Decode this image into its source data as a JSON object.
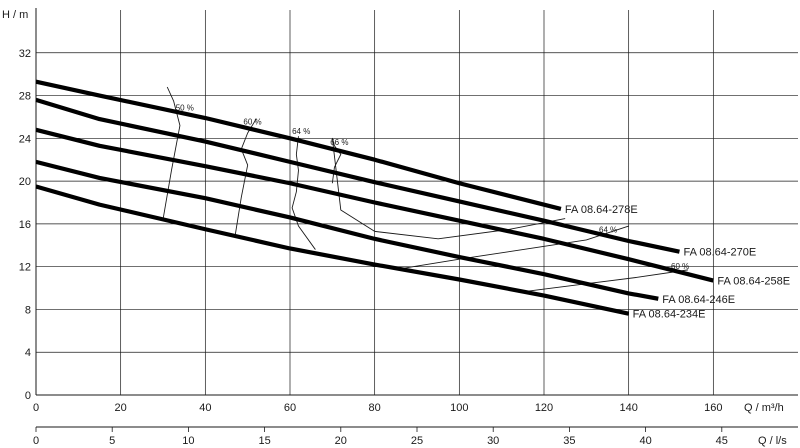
{
  "chart_data": {
    "type": "line",
    "title": "",
    "ylabel": "H / m",
    "xlabel": "Q / m³/h",
    "x2label": "Q / l/s",
    "xlim": [
      0,
      180
    ],
    "ylim": [
      0,
      36
    ],
    "x2lim": [
      0,
      50
    ],
    "x_ticks": [
      0,
      20,
      40,
      60,
      80,
      100,
      120,
      140,
      160
    ],
    "y_ticks": [
      0,
      4,
      8,
      12,
      16,
      20,
      24,
      28,
      32
    ],
    "x2_ticks": [
      0,
      5,
      10,
      15,
      20,
      25,
      30,
      35,
      40,
      45
    ],
    "grid": true,
    "series": [
      {
        "name": "FA 08.64-278E",
        "x": [
          0,
          15,
          40,
          60,
          80,
          100,
          124
        ],
        "y": [
          29.3,
          28.0,
          25.9,
          24.0,
          22.0,
          19.8,
          17.4
        ]
      },
      {
        "name": "FA 08.64-270E",
        "x": [
          0,
          15,
          40,
          60,
          80,
          100,
          120,
          140,
          152
        ],
        "y": [
          27.6,
          25.8,
          23.7,
          21.8,
          19.9,
          18.1,
          16.3,
          14.4,
          13.4
        ]
      },
      {
        "name": "FA 08.64-258E",
        "x": [
          0,
          15,
          40,
          60,
          80,
          100,
          120,
          140,
          160
        ],
        "y": [
          24.8,
          23.3,
          21.4,
          19.8,
          18.0,
          16.3,
          14.6,
          12.7,
          10.7
        ]
      },
      {
        "name": "FA 08.64-246E",
        "x": [
          0,
          15,
          40,
          60,
          80,
          100,
          120,
          140,
          147
        ],
        "y": [
          21.8,
          20.3,
          18.4,
          16.6,
          14.6,
          12.9,
          11.3,
          9.5,
          9.0
        ]
      },
      {
        "name": "FA 08.64-234E",
        "x": [
          0,
          15,
          40,
          60,
          80,
          100,
          120,
          140
        ],
        "y": [
          19.5,
          17.8,
          15.5,
          13.7,
          12.2,
          10.8,
          9.3,
          7.6
        ]
      }
    ],
    "efficiency_curves": [
      {
        "label": "50 %",
        "x": [
          30,
          32,
          34,
          32.5,
          31
        ],
        "y": [
          16.4,
          21.0,
          25.2,
          27.5,
          28.8
        ]
      },
      {
        "label": "60 %",
        "x": [
          47,
          48.5,
          50,
          48.5,
          50,
          52
        ],
        "y": [
          14.8,
          18.5,
          21.5,
          23.0,
          24.5,
          25.8
        ]
      },
      {
        "label": "64 %",
        "x": [
          66,
          62,
          60.5,
          61.5,
          62,
          61.5,
          62
        ],
        "y": [
          13.6,
          15.8,
          17.5,
          19.0,
          21.0,
          22.5,
          24.2
        ]
      },
      {
        "label": "66 %",
        "x": [
          70,
          70.5,
          72,
          70.5,
          70,
          72,
          80,
          95,
          112,
          125
        ],
        "y": [
          19.8,
          21.3,
          22.5,
          23.3,
          24.0,
          17.3,
          15.3,
          14.6,
          15.5,
          16.5
        ]
      },
      {
        "label": "64 %",
        "x": [
          86,
          100,
          115,
          130,
          140
        ],
        "y": [
          11.8,
          12.7,
          13.6,
          14.5,
          15.8
        ]
      },
      {
        "label": "60 %",
        "x": [
          114,
          128,
          142,
          154
        ],
        "y": [
          9.6,
          10.3,
          11.0,
          11.7
        ]
      }
    ],
    "efficiency_label_pos": [
      {
        "x": 33,
        "y": 26.6
      },
      {
        "x": 49,
        "y": 25.3
      },
      {
        "x": 60.5,
        "y": 24.4
      },
      {
        "x": 69.5,
        "y": 23.4
      },
      {
        "x": 133,
        "y": 15.2
      },
      {
        "x": 150,
        "y": 11.8
      }
    ],
    "legend": "inline"
  }
}
